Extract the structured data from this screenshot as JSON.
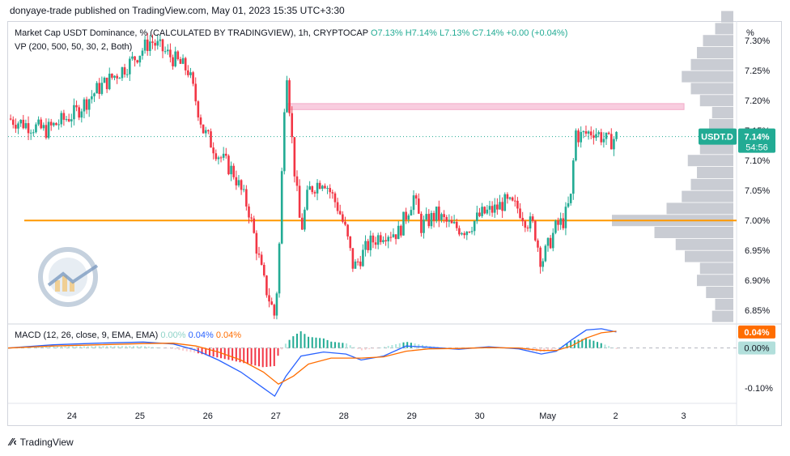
{
  "header": {
    "published": "donyaye-trade published on TradingView.com, May 01, 2023 15:35 UTC+3:30"
  },
  "legend": {
    "title": "Market Cap USDT Dominance, % (CALCULATED BY TRADINGVIEW), 1h, CRYPTOCAP",
    "open": "O7.13%",
    "high": "H7.14%",
    "low": "L7.13%",
    "close": "C7.14%",
    "change": "+0.00 (+0.04%)",
    "vp": "VP (200, 500, 50, 30, 2, Both)"
  },
  "macd_legend": {
    "label": "MACD (12, 26, close, 9, EMA, EMA)",
    "hist": "0.00%",
    "macd": "0.04%",
    "signal": "0.04%"
  },
  "price_badge": {
    "symbol": "USDT.D",
    "price": "7.14%",
    "countdown": "54:56"
  },
  "macd_badges": {
    "macd": "0.04%",
    "hist": "0.00%"
  },
  "axis_unit": "%",
  "footer": {
    "brand": "TradingView"
  },
  "colors": {
    "up": "#22ab94",
    "down": "#f23645",
    "macd": "#2962ff",
    "signal": "#ff6d00",
    "support": "#ff9800",
    "zone": "#f8c8dc",
    "vp": "#c3c6ce"
  },
  "chart_data": [
    {
      "type": "candlestick",
      "title": "Market Cap USDT Dominance, %",
      "x_ticks": [
        "24",
        "25",
        "26",
        "27",
        "28",
        "29",
        "30",
        "May",
        "2",
        "3"
      ],
      "y_ticks": [
        "6.85%",
        "6.90%",
        "6.95%",
        "7.00%",
        "7.05%",
        "7.10%",
        "7.15%",
        "7.20%",
        "7.25%",
        "7.30%"
      ],
      "ylim": [
        6.83,
        7.33
      ],
      "timeframe": "1h",
      "last_price": 7.14,
      "support_level": 7.0,
      "resistance_zone": [
        7.185,
        7.195
      ],
      "close_path": [
        [
          0,
          7.17
        ],
        [
          5,
          7.15
        ],
        [
          9,
          7.18
        ],
        [
          12,
          7.22
        ],
        [
          16,
          7.26
        ],
        [
          19,
          7.3
        ],
        [
          21,
          7.28
        ],
        [
          24,
          7.25
        ],
        [
          26,
          7.15
        ],
        [
          28,
          7.11
        ],
        [
          30,
          7.08
        ],
        [
          32,
          7.02
        ],
        [
          34,
          6.9
        ],
        [
          35.5,
          6.84
        ],
        [
          36,
          6.92
        ],
        [
          37,
          7.27
        ],
        [
          38,
          7.1
        ],
        [
          39,
          6.98
        ],
        [
          40,
          7.05
        ],
        [
          42,
          7.07
        ],
        [
          44,
          7.02
        ],
        [
          45,
          6.98
        ],
        [
          46,
          6.92
        ],
        [
          48,
          6.96
        ],
        [
          50,
          6.98
        ],
        [
          52,
          6.98
        ],
        [
          54,
          7.04
        ],
        [
          55,
          6.99
        ],
        [
          57,
          7.01
        ],
        [
          59,
          6.99
        ],
        [
          61,
          6.985
        ],
        [
          63,
          7.01
        ],
        [
          65,
          7.02
        ],
        [
          66,
          7.03
        ],
        [
          68,
          7.02
        ],
        [
          69,
          7.0
        ],
        [
          70,
          6.99
        ],
        [
          71,
          6.93
        ],
        [
          72,
          6.96
        ],
        [
          73,
          6.99
        ],
        [
          74,
          7.0
        ],
        [
          75,
          7.04
        ],
        [
          75.5,
          7.15
        ],
        [
          76,
          7.14
        ],
        [
          78,
          7.15
        ],
        [
          80,
          7.13
        ],
        [
          81,
          7.14
        ]
      ]
    },
    {
      "type": "volume-profile",
      "levels": [
        6.84,
        6.86,
        6.88,
        6.9,
        6.92,
        6.94,
        6.96,
        6.98,
        7.0,
        7.02,
        7.04,
        7.06,
        7.08,
        7.1,
        7.12,
        7.14,
        7.16,
        7.18,
        7.2,
        7.22,
        7.24,
        7.26,
        7.28,
        7.3,
        7.32,
        7.34
      ],
      "volumes": [
        0.35,
        0.3,
        0.45,
        0.6,
        0.55,
        0.8,
        0.95,
        1.3,
        2.0,
        1.1,
        0.85,
        0.7,
        0.6,
        0.75,
        0.55,
        0.45,
        0.4,
        0.35,
        0.55,
        0.7,
        0.85,
        0.7,
        0.6,
        0.5,
        0.3,
        0.2
      ]
    },
    {
      "type": "macd",
      "title": "MACD (12, 26, close, 9, EMA, EMA)",
      "y_ticks": [
        "0.00%",
        "-0.10%"
      ],
      "ylim": [
        -0.13,
        0.06
      ],
      "macd": [
        [
          0,
          0.0
        ],
        [
          6,
          0.008
        ],
        [
          12,
          0.012
        ],
        [
          18,
          0.015
        ],
        [
          22,
          0.01
        ],
        [
          25,
          -0.005
        ],
        [
          28,
          -0.03
        ],
        [
          31,
          -0.06
        ],
        [
          34,
          -0.1
        ],
        [
          35.5,
          -0.12
        ],
        [
          37,
          -0.07
        ],
        [
          39,
          -0.02
        ],
        [
          42,
          -0.01
        ],
        [
          45,
          -0.015
        ],
        [
          47,
          -0.03
        ],
        [
          50,
          -0.02
        ],
        [
          53,
          0.005
        ],
        [
          56,
          0.002
        ],
        [
          60,
          -0.003
        ],
        [
          64,
          0.003
        ],
        [
          68,
          -0.002
        ],
        [
          71,
          -0.015
        ],
        [
          73,
          -0.008
        ],
        [
          75,
          0.02
        ],
        [
          77,
          0.045
        ],
        [
          79,
          0.048
        ],
        [
          81,
          0.04
        ]
      ],
      "signal": [
        [
          0,
          0.0
        ],
        [
          6,
          0.005
        ],
        [
          12,
          0.008
        ],
        [
          18,
          0.011
        ],
        [
          22,
          0.012
        ],
        [
          25,
          0.005
        ],
        [
          28,
          -0.01
        ],
        [
          31,
          -0.03
        ],
        [
          34,
          -0.06
        ],
        [
          36,
          -0.09
        ],
        [
          38,
          -0.07
        ],
        [
          40,
          -0.04
        ],
        [
          43,
          -0.025
        ],
        [
          47,
          -0.025
        ],
        [
          50,
          -0.022
        ],
        [
          53,
          -0.008
        ],
        [
          56,
          -0.002
        ],
        [
          60,
          -0.001
        ],
        [
          64,
          0.001
        ],
        [
          68,
          0.0
        ],
        [
          71,
          -0.006
        ],
        [
          73,
          -0.006
        ],
        [
          75,
          0.005
        ],
        [
          77,
          0.025
        ],
        [
          79,
          0.038
        ],
        [
          81,
          0.042
        ]
      ],
      "hist_last": 0.0
    }
  ]
}
